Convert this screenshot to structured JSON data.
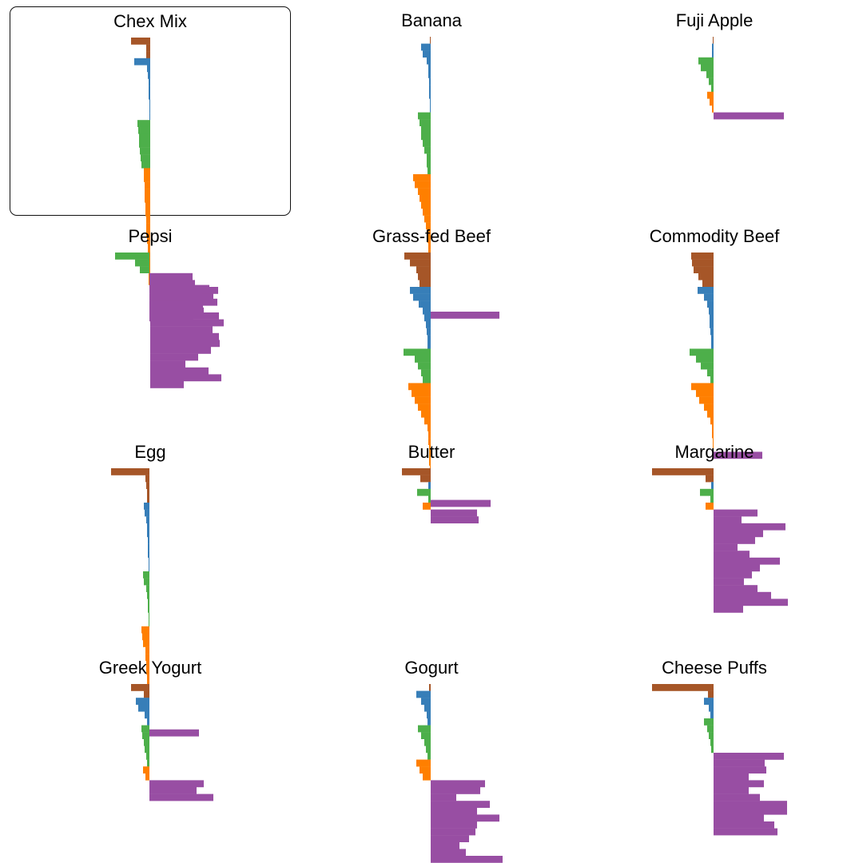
{
  "colors": {
    "fat": "#a65628",
    "protein": "#377eb8",
    "mineral": "#4daf4a",
    "vitamin": "#ff7f00",
    "carb": "#984ea3"
  },
  "chart_data": [
    {
      "type": "bar",
      "title": "Chex Mix",
      "selected": true,
      "groups": [
        {
          "key": "fat",
          "side": "left",
          "values": [
            24,
            5,
            5
          ]
        },
        {
          "key": "protein",
          "side": "left",
          "values": [
            20,
            4,
            3,
            2,
            2,
            2,
            1,
            1,
            1
          ]
        },
        {
          "key": "mineral",
          "side": "left",
          "values": [
            16,
            15,
            14,
            14,
            13,
            12,
            11
          ]
        },
        {
          "key": "vitamin",
          "side": "left",
          "values": [
            8,
            8,
            7,
            7,
            7,
            6,
            6,
            5,
            5,
            5,
            4,
            3,
            3,
            3,
            2,
            2,
            2
          ]
        },
        {
          "key": "carb",
          "side": "right",
          "values": [
            74,
            79,
            84,
            66,
            86,
            92,
            78,
            86,
            87,
            76,
            60,
            44,
            73,
            89,
            42
          ]
        }
      ]
    },
    {
      "type": "bar",
      "title": "Banana",
      "selected": false,
      "groups": [
        {
          "key": "fat",
          "side": "left",
          "values": [
            1
          ]
        },
        {
          "key": "protein",
          "side": "left",
          "values": [
            12,
            10,
            5,
            3,
            3,
            2,
            2,
            2,
            1,
            1
          ]
        },
        {
          "key": "mineral",
          "side": "left",
          "values": [
            16,
            14,
            12,
            12,
            10,
            8,
            5,
            5,
            4
          ]
        },
        {
          "key": "vitamin",
          "side": "left",
          "values": [
            22,
            20,
            16,
            14,
            12,
            10,
            8,
            6,
            5,
            4,
            3,
            3,
            2,
            2,
            2,
            1,
            1,
            1,
            1,
            1
          ]
        },
        {
          "key": "carb",
          "side": "right",
          "values": [
            86
          ]
        }
      ]
    },
    {
      "type": "bar",
      "title": "Fuji Apple",
      "selected": false,
      "groups": [
        {
          "key": "fat",
          "side": "left",
          "values": [
            1
          ]
        },
        {
          "key": "protein",
          "side": "left",
          "values": [
            2,
            2
          ]
        },
        {
          "key": "mineral",
          "side": "left",
          "values": [
            19,
            16,
            9,
            6,
            3
          ]
        },
        {
          "key": "vitamin",
          "side": "left",
          "values": [
            8,
            5,
            2
          ]
        },
        {
          "key": "carb",
          "side": "right",
          "values": [
            88
          ]
        }
      ]
    },
    {
      "type": "bar",
      "title": "Pepsi",
      "selected": false,
      "groups": [
        {
          "key": "fat",
          "side": "left",
          "values": []
        },
        {
          "key": "protein",
          "side": "left",
          "values": []
        },
        {
          "key": "mineral",
          "side": "left",
          "values": [
            43,
            18,
            12
          ]
        },
        {
          "key": "vitamin",
          "side": "left",
          "values": []
        },
        {
          "key": "carb",
          "side": "right",
          "values": [
            54,
            57,
            86,
            66,
            45,
            68,
            55
          ]
        }
      ]
    },
    {
      "type": "bar",
      "title": "Grass-fed Beef",
      "selected": false,
      "groups": [
        {
          "key": "fat",
          "side": "left",
          "values": [
            33,
            26,
            18,
            16,
            14
          ]
        },
        {
          "key": "protein",
          "side": "left",
          "values": [
            26,
            22,
            15,
            10,
            8,
            6,
            5,
            4,
            4
          ]
        },
        {
          "key": "mineral",
          "side": "left",
          "values": [
            34,
            20,
            16,
            12,
            10
          ]
        },
        {
          "key": "vitamin",
          "side": "left",
          "values": [
            28,
            24,
            20,
            16,
            12,
            8,
            4,
            3,
            3,
            2,
            2,
            2,
            1,
            1,
            1,
            1,
            1
          ]
        },
        {
          "key": "carb",
          "side": "right",
          "values": [
            75
          ]
        }
      ]
    },
    {
      "type": "bar",
      "title": "Commodity Beef",
      "selected": false,
      "groups": [
        {
          "key": "fat",
          "side": "left",
          "values": [
            28,
            27,
            25,
            19,
            14
          ]
        },
        {
          "key": "protein",
          "side": "left",
          "values": [
            20,
            12,
            8,
            6,
            5,
            5,
            4,
            3,
            3
          ]
        },
        {
          "key": "mineral",
          "side": "left",
          "values": [
            30,
            22,
            16,
            8,
            4
          ]
        },
        {
          "key": "vitamin",
          "side": "left",
          "values": [
            28,
            22,
            18,
            12,
            8,
            4,
            2,
            2,
            1,
            1
          ]
        },
        {
          "key": "carb",
          "side": "right",
          "values": [
            61
          ]
        }
      ]
    },
    {
      "type": "bar",
      "title": "Egg",
      "selected": false,
      "groups": [
        {
          "key": "fat",
          "side": "left",
          "values": [
            48,
            5,
            4,
            3,
            3
          ]
        },
        {
          "key": "protein",
          "side": "left",
          "values": [
            7,
            6,
            4,
            3,
            3,
            2,
            2,
            2,
            1,
            1
          ]
        },
        {
          "key": "mineral",
          "side": "left",
          "values": [
            8,
            7,
            4,
            3,
            2,
            2,
            1,
            1
          ]
        },
        {
          "key": "vitamin",
          "side": "left",
          "values": [
            10,
            9,
            8,
            5,
            5,
            4,
            4,
            3,
            3,
            3,
            2,
            2,
            2,
            2,
            1
          ]
        },
        {
          "key": "carb",
          "side": "right",
          "values": [
            62
          ]
        }
      ]
    },
    {
      "type": "bar",
      "title": "Butter",
      "selected": false,
      "groups": [
        {
          "key": "fat",
          "side": "left",
          "values": [
            36,
            13
          ]
        },
        {
          "key": "protein",
          "side": "left",
          "values": [
            3
          ]
        },
        {
          "key": "mineral",
          "side": "left",
          "values": [
            17,
            3
          ]
        },
        {
          "key": "vitamin",
          "side": "left",
          "values": [
            10
          ]
        },
        {
          "key": "carb",
          "side": "right",
          "values": [
            58,
            60
          ]
        }
      ]
    },
    {
      "type": "bar",
      "title": "Margarine",
      "selected": false,
      "groups": [
        {
          "key": "fat",
          "side": "left",
          "values": [
            77,
            10
          ]
        },
        {
          "key": "protein",
          "side": "left",
          "values": [
            3
          ]
        },
        {
          "key": "mineral",
          "side": "left",
          "values": [
            17,
            4
          ]
        },
        {
          "key": "vitamin",
          "side": "left",
          "values": [
            10
          ]
        },
        {
          "key": "carb",
          "side": "right",
          "values": [
            55,
            35,
            90,
            62,
            52,
            30,
            45,
            83,
            58,
            48,
            38,
            55,
            72,
            93,
            37
          ]
        }
      ]
    },
    {
      "type": "bar",
      "title": "Greek Yogurt",
      "selected": false,
      "groups": [
        {
          "key": "fat",
          "side": "left",
          "values": [
            23,
            7
          ]
        },
        {
          "key": "protein",
          "side": "left",
          "values": [
            17,
            14,
            6,
            3
          ]
        },
        {
          "key": "mineral",
          "side": "left",
          "values": [
            10,
            9,
            7,
            6,
            4,
            3
          ]
        },
        {
          "key": "vitamin",
          "side": "left",
          "values": [
            8,
            5
          ]
        },
        {
          "key": "carb",
          "side": "right",
          "values": [
            68,
            59,
            80
          ]
        }
      ]
    },
    {
      "type": "bar",
      "title": "Gogurt",
      "selected": false,
      "groups": [
        {
          "key": "fat",
          "side": "left",
          "values": [
            2
          ]
        },
        {
          "key": "protein",
          "side": "left",
          "values": [
            18,
            12,
            8,
            5,
            4
          ]
        },
        {
          "key": "mineral",
          "side": "left",
          "values": [
            16,
            12,
            8,
            6,
            4
          ]
        },
        {
          "key": "vitamin",
          "side": "left",
          "values": [
            18,
            14,
            10
          ]
        },
        {
          "key": "carb",
          "side": "right",
          "values": [
            68,
            62,
            32,
            74,
            58,
            86,
            58,
            56,
            48,
            36,
            44,
            90
          ]
        }
      ]
    },
    {
      "type": "bar",
      "title": "Cheese Puffs",
      "selected": false,
      "groups": [
        {
          "key": "fat",
          "side": "left",
          "values": [
            77,
            7
          ]
        },
        {
          "key": "protein",
          "side": "left",
          "values": [
            12,
            6,
            4
          ]
        },
        {
          "key": "mineral",
          "side": "left",
          "values": [
            12,
            8,
            6,
            4,
            3
          ]
        },
        {
          "key": "vitamin",
          "side": "left",
          "values": []
        },
        {
          "key": "carb",
          "side": "right",
          "values": [
            88,
            64,
            66,
            44,
            63,
            44,
            58,
            92,
            92,
            63,
            76,
            80
          ]
        }
      ]
    }
  ]
}
